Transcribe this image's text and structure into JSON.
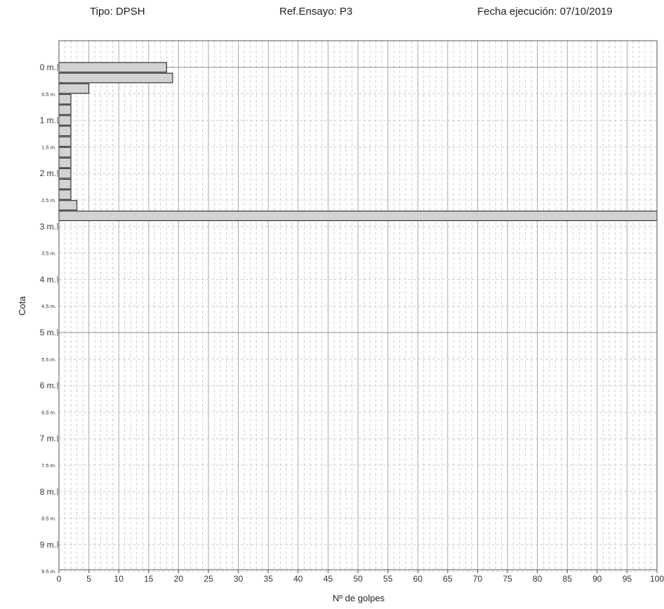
{
  "header": {
    "tipo": "Tipo: DPSH",
    "ref": "Ref.Ensayo: P3",
    "fecha": "Fecha ejecución: 07/10/2019"
  },
  "chart_data": {
    "type": "bar",
    "orientation": "horizontal",
    "xlabel": "Nº de golpes",
    "ylabel": "Cota",
    "xlim": [
      0,
      100
    ],
    "ylim": [
      -0.5,
      9.6
    ],
    "x_ticks": [
      0,
      5,
      10,
      15,
      20,
      25,
      30,
      35,
      40,
      45,
      50,
      55,
      60,
      65,
      70,
      75,
      80,
      85,
      90,
      95,
      100
    ],
    "y_ticks_major": [
      {
        "value": 0,
        "label": "0 m."
      },
      {
        "value": 1,
        "label": "1 m."
      },
      {
        "value": 2,
        "label": "2 m."
      },
      {
        "value": 3,
        "label": "3 m."
      },
      {
        "value": 4,
        "label": "4 m."
      },
      {
        "value": 5,
        "label": "5 m."
      },
      {
        "value": 6,
        "label": "6 m."
      },
      {
        "value": 7,
        "label": "7 m."
      },
      {
        "value": 8,
        "label": "8 m."
      },
      {
        "value": 9,
        "label": "9 m."
      }
    ],
    "y_ticks_minor": [
      {
        "value": 0.5,
        "label": "0.5 m."
      },
      {
        "value": 1.5,
        "label": "1.5 m."
      },
      {
        "value": 2.5,
        "label": "2.5 m."
      },
      {
        "value": 3.5,
        "label": "3.5 m."
      },
      {
        "value": 4.5,
        "label": "4.5 m."
      },
      {
        "value": 5.5,
        "label": "5.5 m."
      },
      {
        "value": 6.5,
        "label": "6.5 m."
      },
      {
        "value": 7.5,
        "label": "7.5 m."
      },
      {
        "value": 8.5,
        "label": "8.5 m."
      },
      {
        "value": 9.5,
        "label": "9.5 m."
      }
    ],
    "depth_step": 0.2,
    "depths": [
      0.0,
      0.2,
      0.4,
      0.6,
      0.8,
      1.0,
      1.2,
      1.4,
      1.6,
      1.8,
      2.0,
      2.2,
      2.4,
      2.6,
      2.8
    ],
    "values": [
      18,
      19,
      5,
      2,
      2,
      2,
      2,
      2,
      2,
      2,
      2,
      2,
      2,
      3,
      100
    ],
    "grid": true,
    "bar_color": "#d3d3d3",
    "bar_stroke": "#333333"
  }
}
